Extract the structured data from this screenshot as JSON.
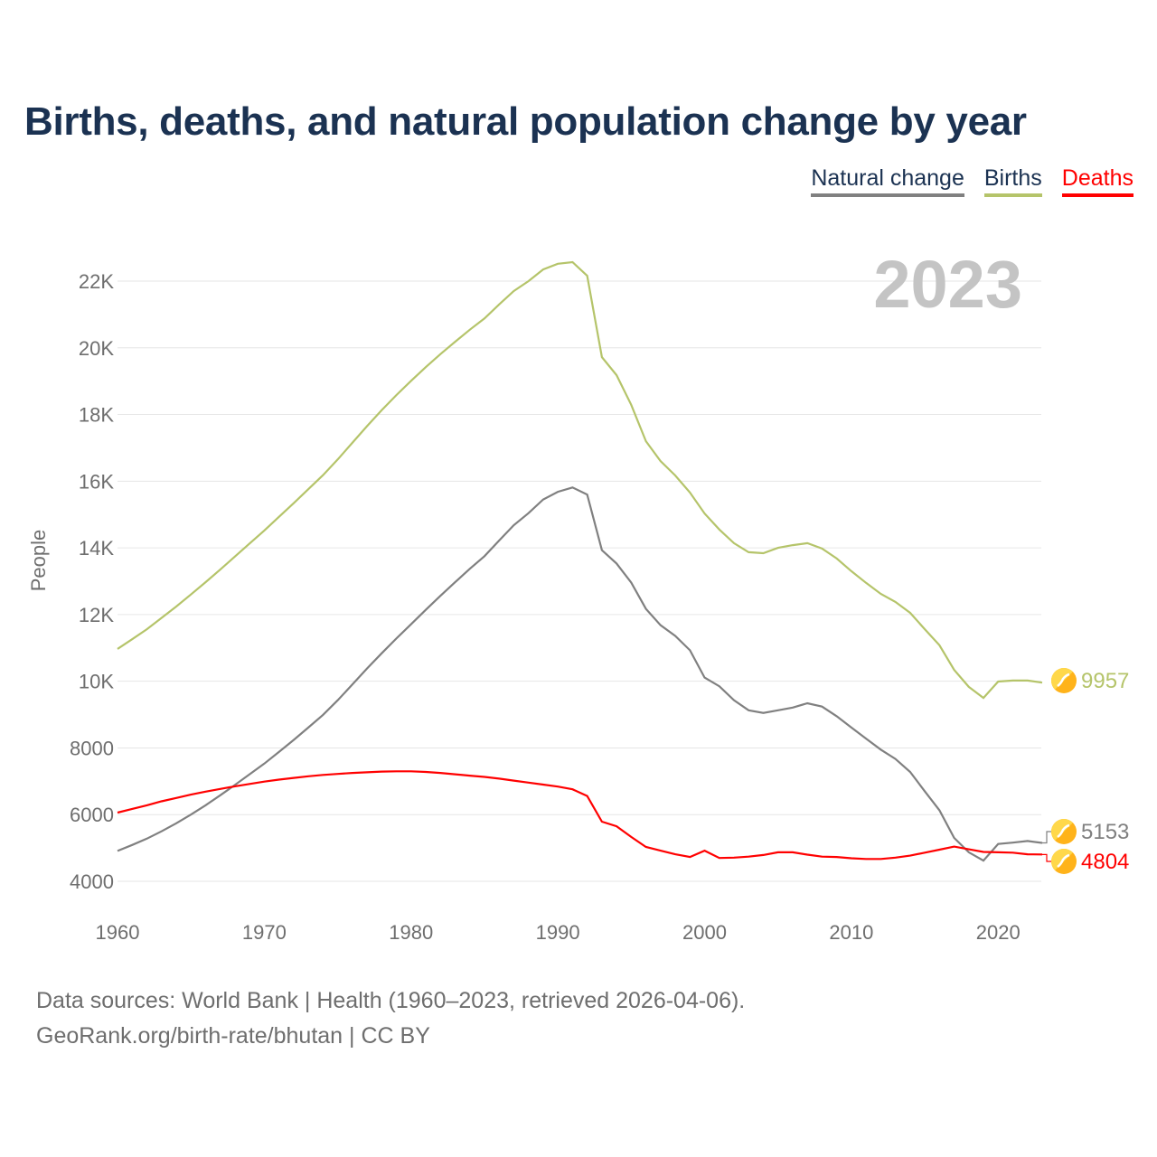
{
  "title": "Births, deaths, and natural population change by year",
  "legend": [
    {
      "label": "Natural change",
      "color": "#808080"
    },
    {
      "label": "Births",
      "color": "#b5c46a"
    },
    {
      "label": "Deaths",
      "color": "#ff0000"
    }
  ],
  "year_label": "2023",
  "source_line1": "Data sources: World Bank | Health (1960–2023, retrieved 2026-04-06).",
  "source_line2": "GeoRank.org/birth-rate/bhutan | CC BY",
  "chart_data": {
    "type": "line",
    "title": "Births, deaths, and natural population change by year",
    "xlabel": "",
    "ylabel": "People",
    "xlim": [
      1960,
      2023
    ],
    "ylim": [
      3400,
      23500
    ],
    "x_ticks": [
      1960,
      1970,
      1980,
      1990,
      2000,
      2010,
      2020
    ],
    "y_ticks": [
      {
        "v": 4000,
        "l": "4000"
      },
      {
        "v": 6000,
        "l": "6000"
      },
      {
        "v": 8000,
        "l": "8000"
      },
      {
        "v": 10000,
        "l": "10K"
      },
      {
        "v": 12000,
        "l": "12K"
      },
      {
        "v": 14000,
        "l": "14K"
      },
      {
        "v": 16000,
        "l": "16K"
      },
      {
        "v": 18000,
        "l": "18K"
      },
      {
        "v": 20000,
        "l": "20K"
      },
      {
        "v": 22000,
        "l": "22K"
      }
    ],
    "x_start": 1960,
    "series": [
      {
        "name": "Births",
        "color": "#b5c46a",
        "end_label": "9957",
        "values": [
          10970,
          11260,
          11560,
          11900,
          12240,
          12600,
          12970,
          13350,
          13740,
          14130,
          14520,
          14930,
          15340,
          15760,
          16180,
          16650,
          17150,
          17650,
          18130,
          18580,
          19010,
          19420,
          19810,
          20180,
          20540,
          20880,
          21300,
          21700,
          22000,
          22350,
          22520,
          22570,
          22160,
          19720,
          19180,
          18290,
          17200,
          16600,
          16170,
          15660,
          15030,
          14550,
          14140,
          13870,
          13840,
          14000,
          14080,
          14140,
          13980,
          13680,
          13300,
          12950,
          12620,
          12380,
          12050,
          11560,
          11080,
          10340,
          9830,
          9500,
          9990,
          10020,
          10020,
          9957
        ]
      },
      {
        "name": "Natural change",
        "color": "#808080",
        "end_label": "5153",
        "values": [
          4910,
          5090,
          5280,
          5500,
          5740,
          6000,
          6280,
          6580,
          6890,
          7210,
          7530,
          7880,
          8240,
          8610,
          8990,
          9430,
          9900,
          10380,
          10840,
          11280,
          11710,
          12140,
          12560,
          12970,
          13370,
          13750,
          14220,
          14680,
          15040,
          15450,
          15680,
          15810,
          15600,
          13930,
          13530,
          12960,
          12170,
          11680,
          11360,
          10930,
          10110,
          9850,
          9430,
          9130,
          9050,
          9130,
          9210,
          9340,
          9240,
          8950,
          8610,
          8280,
          7950,
          7670,
          7280,
          6700,
          6130,
          5300,
          4870,
          4620,
          5120,
          5160,
          5210,
          5153
        ]
      },
      {
        "name": "Deaths",
        "color": "#ff0000",
        "end_label": "4804",
        "values": [
          6060,
          6170,
          6280,
          6400,
          6500,
          6600,
          6690,
          6770,
          6850,
          6920,
          6990,
          7050,
          7100,
          7150,
          7190,
          7220,
          7250,
          7270,
          7290,
          7300,
          7300,
          7280,
          7250,
          7210,
          7170,
          7130,
          7080,
          7020,
          6960,
          6900,
          6840,
          6760,
          6560,
          5790,
          5650,
          5330,
          5030,
          4920,
          4810,
          4730,
          4920,
          4700,
          4710,
          4740,
          4790,
          4870,
          4870,
          4800,
          4740,
          4730,
          4690,
          4670,
          4670,
          4710,
          4770,
          4860,
          4950,
          5040,
          4960,
          4880,
          4870,
          4860,
          4810,
          4804
        ]
      }
    ]
  }
}
